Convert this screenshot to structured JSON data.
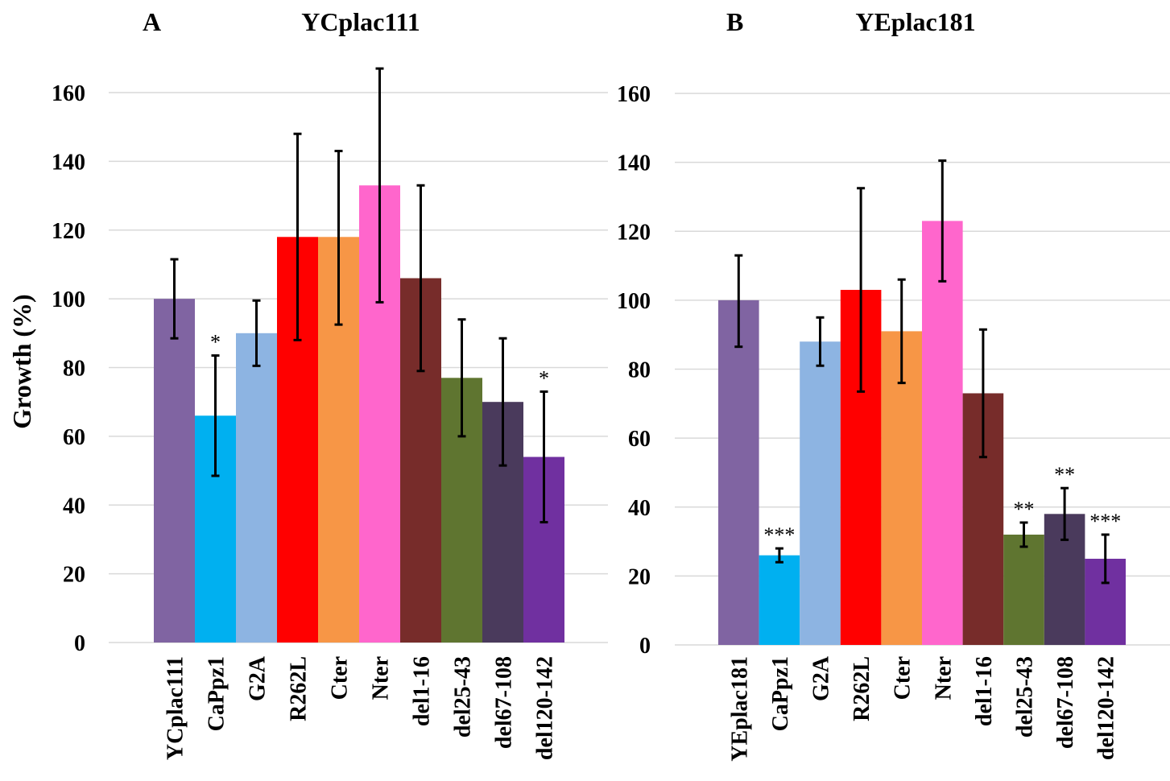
{
  "chart_data": [
    {
      "type": "bar",
      "panel": "A",
      "title": "YCplac111",
      "ylabel": "Growth (%)",
      "ylim": [
        0,
        160
      ],
      "yticks": [
        "0",
        "20",
        "40",
        "60",
        "80",
        "100",
        "120",
        "140",
        "160"
      ],
      "grid": true,
      "categories": [
        "YCplac111",
        "CaPpz1",
        "G2A",
        "R262L",
        "Cter",
        "Nter",
        "del1-16",
        "del25-43",
        "del67-108",
        "del120-142"
      ],
      "values": [
        100,
        66,
        90,
        118,
        118,
        133,
        106,
        77,
        70,
        54
      ],
      "error_low": [
        88.5,
        48.5,
        80.5,
        88,
        92.5,
        99,
        79,
        60,
        51.5,
        35
      ],
      "error_high": [
        111.5,
        83.5,
        99.5,
        148,
        143,
        167,
        133,
        94,
        88.5,
        73
      ],
      "significance": [
        "",
        "*",
        "",
        "",
        "",
        "",
        "",
        "",
        "",
        "*"
      ],
      "colors": [
        "#8064A2",
        "#00B0F0",
        "#8DB4E2",
        "#FF0000",
        "#F79646",
        "#FF66CC",
        "#772C2A",
        "#5F7530",
        "#4A3A5C",
        "#7030A0"
      ]
    },
    {
      "type": "bar",
      "panel": "B",
      "title": "YEplac181",
      "ylim": [
        0,
        160
      ],
      "yticks": [
        "0",
        "20",
        "40",
        "60",
        "80",
        "100",
        "120",
        "140",
        "160"
      ],
      "grid": true,
      "categories": [
        "YEplac181",
        "CaPpz1",
        "G2A",
        "R262L",
        "Cter",
        "Nter",
        "del1-16",
        "del25-43",
        "del67-108",
        "del120-142"
      ],
      "values": [
        100,
        26,
        88,
        103,
        91,
        123,
        73,
        32,
        38,
        25
      ],
      "error_low": [
        86.5,
        24,
        81,
        73.5,
        76,
        105.5,
        54.5,
        28.5,
        30.5,
        18
      ],
      "error_high": [
        113,
        28,
        95,
        132.5,
        106,
        140.5,
        91.5,
        35.5,
        45.5,
        32
      ],
      "significance": [
        "",
        "***",
        "",
        "",
        "",
        "",
        "",
        "**",
        "**",
        "***"
      ],
      "colors": [
        "#8064A2",
        "#00B0F0",
        "#8DB4E2",
        "#FF0000",
        "#F79646",
        "#FF66CC",
        "#772C2A",
        "#5F7530",
        "#4A3A5C",
        "#7030A0"
      ]
    }
  ]
}
